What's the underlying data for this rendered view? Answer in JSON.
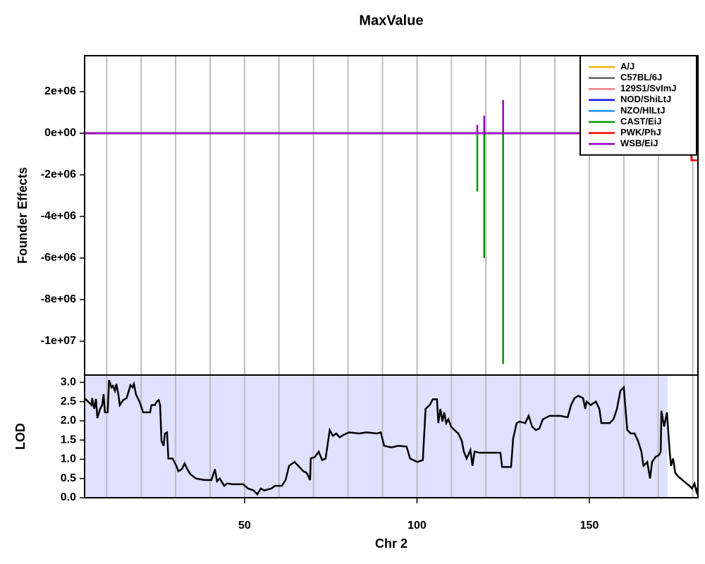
{
  "chart_data": [
    {
      "type": "line",
      "title": "MaxValue",
      "y_label": "Founder Effects",
      "xlim": [
        3.6,
        181.5
      ],
      "ylim": [
        -11630000,
        3730000
      ],
      "yticks": [
        {
          "value": -10000000,
          "label": "-1e+07"
        },
        {
          "value": -8000000,
          "label": "-8e+06"
        },
        {
          "value": -6000000,
          "label": "-6e+06"
        },
        {
          "value": -4000000,
          "label": "-4e+06"
        },
        {
          "value": -2000000,
          "label": "-2e+06"
        },
        {
          "value": 0,
          "label": "0e+00"
        },
        {
          "value": 2000000,
          "label": "2e+06"
        }
      ],
      "xgrid": [
        10,
        20,
        30,
        40,
        50,
        60,
        70,
        80,
        90,
        100,
        110,
        120,
        130,
        140,
        150,
        160,
        170,
        180
      ],
      "legend": "topright",
      "x": [
        3.6,
        117.5,
        117.5,
        117.5,
        119.5,
        119.5,
        119.5,
        125,
        125,
        125,
        179.6,
        179.6,
        181.5
      ],
      "series": [
        {
          "name": "A/J",
          "color": "#f0b400",
          "values": [
            0,
            0,
            0,
            0,
            0,
            0,
            0,
            0,
            0,
            0,
            0,
            0,
            0
          ]
        },
        {
          "name": "C57BL/6J",
          "color": "#606060",
          "values": [
            0,
            0,
            0,
            0,
            0,
            0,
            0,
            0,
            0,
            0,
            0,
            0,
            0
          ]
        },
        {
          "name": "129S1/SvImJ",
          "color": "#f08080",
          "values": [
            0,
            0,
            0,
            0,
            0,
            0,
            0,
            0,
            0,
            0,
            0,
            0,
            0
          ]
        },
        {
          "name": "NOD/ShiLtJ",
          "color": "#1010f0",
          "values": [
            0,
            0,
            0,
            0,
            0,
            0,
            0,
            0,
            0,
            0,
            0,
            0,
            0
          ]
        },
        {
          "name": "NZO/HlLtJ",
          "color": "#1e90ff",
          "values": [
            0,
            0,
            0,
            0,
            0,
            0,
            0,
            0,
            0,
            0,
            0,
            0,
            0
          ]
        },
        {
          "name": "CAST/EiJ",
          "color": "#009900",
          "values": [
            0,
            0,
            -2800000,
            0,
            0,
            -6000000,
            0,
            0,
            -11100000,
            0,
            0,
            0,
            0
          ]
        },
        {
          "name": "PWK/PhJ",
          "color": "#f00000",
          "values": [
            0,
            0,
            0,
            0,
            0,
            0,
            0,
            0,
            0,
            0,
            0,
            -1300000,
            -1300000
          ]
        },
        {
          "name": "WSB/EiJ",
          "color": "#9900cc",
          "values": [
            0,
            0,
            400000,
            0,
            0,
            850000,
            0,
            0,
            1600000,
            0,
            0,
            0,
            0
          ]
        }
      ]
    },
    {
      "type": "line",
      "y_label": "LOD",
      "x_label": "Chr 2",
      "xlim": [
        3.6,
        181.5
      ],
      "ylim": [
        0,
        3.19
      ],
      "xticks": [
        50,
        100,
        150
      ],
      "yticks": [
        {
          "value": 0,
          "label": "0.0"
        },
        0.5,
        {
          "value": 1,
          "label": "1.0"
        },
        1.5,
        {
          "value": 2,
          "label": "2.0"
        },
        2.5,
        {
          "value": 3,
          "label": "3.0"
        }
      ],
      "xgrid": [
        10,
        20,
        30,
        40,
        50,
        60,
        70,
        80,
        90,
        100,
        110,
        120,
        130,
        140,
        150,
        160,
        170,
        180
      ],
      "highlight_xlim": [
        3.6,
        172.7
      ],
      "highlight_color": "#e0e0ff",
      "color": "#000000",
      "x": [
        3.6,
        4.6,
        5.6,
        5.8,
        6.4,
        6.9,
        7.3,
        8.1,
        8.7,
        9.1,
        9.5,
        10.3,
        10.7,
        11.4,
        11.8,
        12.4,
        12.8,
        13.4,
        13.8,
        14.8,
        15.8,
        16.9,
        17.5,
        17.9,
        18.5,
        19.5,
        20.6,
        22.6,
        23.0,
        24.0,
        24.5,
        25.1,
        25.5,
        25.9,
        26.5,
        26.9,
        27.5,
        27.9,
        29.1,
        30.2,
        30.8,
        31.8,
        32.6,
        33.4,
        34.3,
        35.9,
        38.3,
        40.4,
        41.4,
        42.0,
        42.8,
        44.1,
        44.9,
        46.5,
        49.6,
        51.0,
        52.6,
        53.7,
        54.7,
        55.7,
        57.8,
        58.8,
        60.8,
        61.9,
        62.9,
        64.5,
        65.9,
        67.0,
        68.0,
        69.0,
        69.2,
        70.4,
        71.5,
        72.5,
        73.5,
        74.1,
        74.7,
        75.6,
        76.6,
        77.6,
        78.6,
        80.3,
        83.3,
        85.4,
        88.4,
        89.5,
        90.5,
        92.5,
        94.6,
        97.0,
        98.0,
        100.1,
        101.7,
        102.5,
        103.7,
        104.6,
        105.8,
        106.2,
        106.8,
        107.4,
        107.9,
        108.5,
        109.1,
        109.9,
        110.9,
        112.0,
        113.0,
        113.6,
        114.4,
        115.5,
        116.1,
        116.7,
        118.1,
        120.2,
        123.2,
        124.2,
        124.7,
        127.3,
        127.9,
        128.9,
        129.8,
        131.4,
        132.4,
        133.4,
        134.5,
        135.5,
        136.5,
        138.5,
        141.6,
        143.7,
        144.7,
        145.7,
        146.8,
        148.2,
        148.8,
        149.2,
        150.4,
        151.9,
        152.9,
        153.5,
        155.9,
        157.0,
        158.0,
        159.0,
        160.0,
        160.4,
        161.0,
        162.0,
        163.1,
        164.1,
        165.1,
        165.7,
        166.8,
        167.6,
        168.2,
        169.2,
        170.2,
        170.7,
        170.9,
        171.7,
        172.5,
        173.3,
        173.7,
        174.3,
        174.9,
        175.7,
        177.4,
        179.0,
        179.8,
        180.5,
        181.1,
        181.5
      ],
      "values": [
        2.59,
        2.5,
        2.41,
        2.59,
        2.31,
        2.57,
        2.07,
        2.31,
        2.41,
        2.69,
        2.22,
        2.22,
        3.06,
        2.87,
        2.91,
        2.78,
        2.96,
        2.69,
        2.41,
        2.54,
        2.59,
        2.93,
        2.87,
        2.96,
        2.69,
        2.5,
        2.22,
        2.22,
        2.41,
        2.41,
        2.5,
        2.54,
        2.41,
        1.48,
        1.35,
        1.67,
        1.7,
        1.02,
        1.02,
        0.83,
        0.69,
        0.74,
        0.89,
        0.74,
        0.61,
        0.5,
        0.46,
        0.46,
        0.74,
        0.43,
        0.5,
        0.31,
        0.37,
        0.35,
        0.35,
        0.24,
        0.19,
        0.09,
        0.24,
        0.19,
        0.24,
        0.31,
        0.31,
        0.46,
        0.83,
        0.93,
        0.8,
        0.69,
        0.65,
        0.46,
        1.02,
        1.06,
        1.2,
        0.98,
        1.02,
        1.39,
        1.76,
        1.61,
        1.67,
        1.57,
        1.63,
        1.7,
        1.67,
        1.7,
        1.67,
        1.7,
        1.35,
        1.31,
        1.35,
        1.33,
        1.02,
        0.93,
        0.98,
        2.31,
        2.41,
        2.56,
        2.56,
        1.94,
        2.31,
        1.98,
        2.22,
        1.94,
        2.04,
        1.85,
        1.76,
        1.67,
        1.48,
        1.2,
        1.02,
        1.24,
        0.83,
        1.2,
        1.17,
        1.17,
        1.17,
        1.17,
        0.8,
        0.8,
        1.54,
        1.94,
        1.98,
        1.94,
        2.13,
        1.85,
        1.76,
        1.8,
        2.04,
        2.13,
        2.13,
        2.09,
        2.41,
        2.59,
        2.65,
        2.59,
        2.31,
        2.5,
        2.41,
        2.5,
        2.31,
        1.94,
        1.94,
        2.04,
        2.31,
        2.78,
        2.87,
        2.41,
        1.76,
        1.67,
        1.67,
        1.48,
        1.2,
        0.83,
        0.93,
        0.5,
        0.93,
        1.06,
        1.11,
        1.2,
        2.26,
        1.85,
        2.22,
        1.2,
        0.83,
        1.02,
        0.65,
        0.56,
        0.43,
        0.31,
        0.24,
        0.37,
        0.15,
        0.28
      ]
    }
  ]
}
